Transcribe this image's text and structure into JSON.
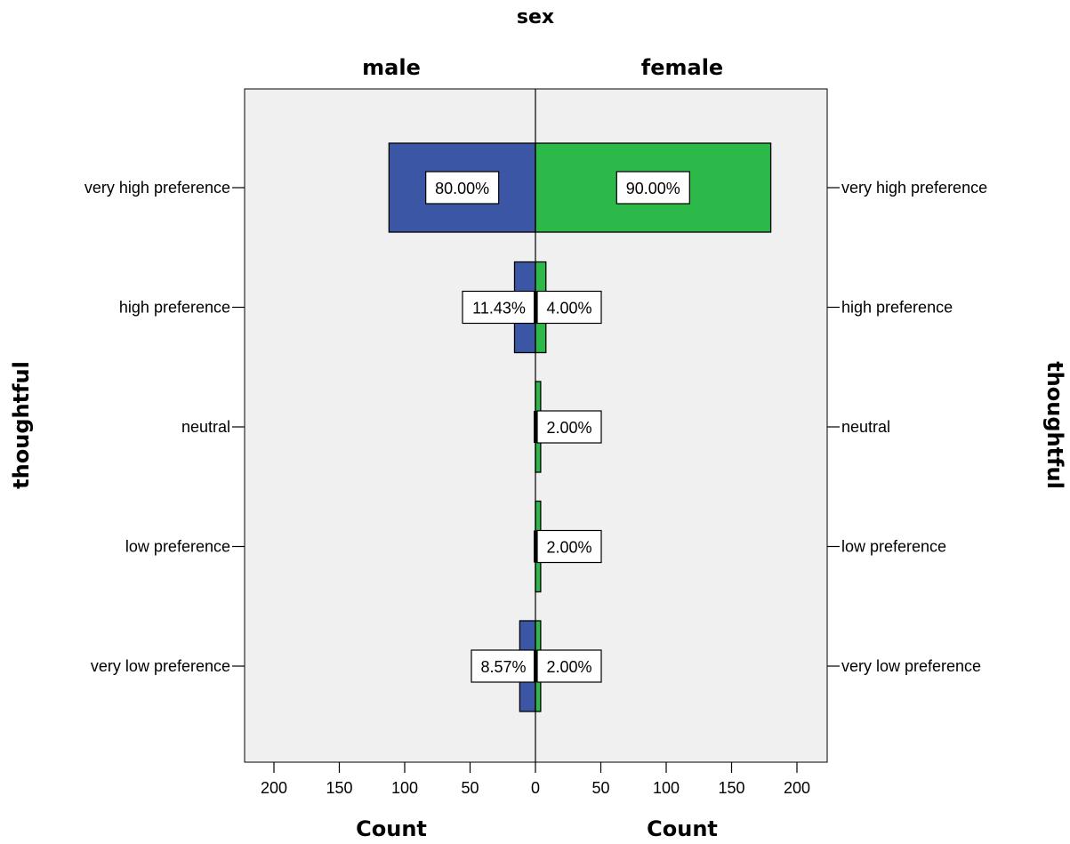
{
  "chart_data": {
    "type": "bar",
    "orientation": "horizontal",
    "layout": "population-pyramid",
    "title": "sex",
    "panel_labels": [
      "male",
      "female"
    ],
    "categories": [
      "very high preference",
      "high preference",
      "neutral",
      "low preference",
      "very low preference"
    ],
    "ylabel": "thoughtful",
    "xlabel": "Count",
    "xlim": [
      0,
      220
    ],
    "xticks": [
      "200",
      "150",
      "100",
      "50",
      "0",
      "50",
      "100",
      "150",
      "200"
    ],
    "grid": false,
    "series": [
      {
        "name": "male",
        "color": "#3c56a6",
        "values": [
          112,
          16,
          0,
          0,
          12
        ],
        "labels": [
          "80.00%",
          "11.43%",
          "",
          "",
          "8.57%"
        ]
      },
      {
        "name": "female",
        "color": "#2db84a",
        "values": [
          180,
          8,
          4,
          4,
          4
        ],
        "labels": [
          "90.00%",
          "4.00%",
          "2.00%",
          "2.00%",
          "2.00%"
        ]
      }
    ]
  }
}
